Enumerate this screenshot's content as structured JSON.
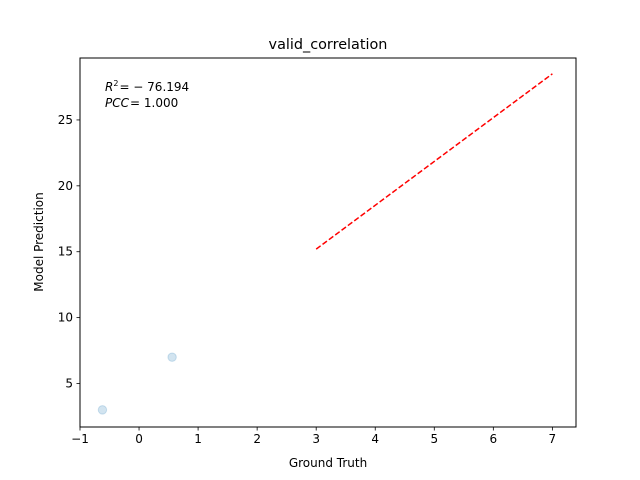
{
  "chart_data": {
    "type": "scatter",
    "title": "valid_correlation",
    "xlabel": "Ground Truth",
    "ylabel": "Model Prediction",
    "xlim": [
      -1,
      7.4
    ],
    "ylim": [
      1.7,
      29.7
    ],
    "xticks": [
      -1,
      0,
      1,
      2,
      3,
      4,
      5,
      6,
      7
    ],
    "yticks": [
      5,
      10,
      15,
      20,
      25
    ],
    "grid": false,
    "points": [
      {
        "x": -0.62,
        "y": 3.0
      },
      {
        "x": 0.56,
        "y": 7.0
      }
    ],
    "point_color": "#1f77b4",
    "point_alpha": 0.2,
    "fit_line": {
      "x": [
        3.0,
        7.0
      ],
      "y": [
        15.2,
        28.5
      ],
      "color": "#ff0000",
      "style": "dashed"
    },
    "annotations": {
      "r2": "= − 76.194",
      "pcc": "= 1.000"
    }
  }
}
